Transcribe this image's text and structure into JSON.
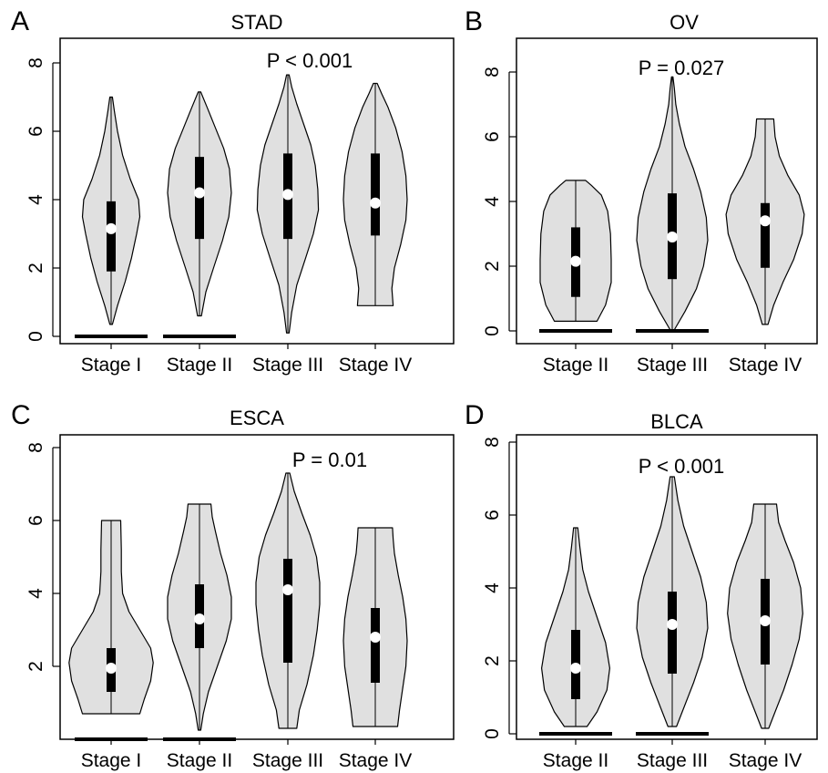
{
  "chart_data": [
    {
      "panel_label": "A",
      "type": "violin",
      "title": "STAD",
      "pvalue": "P < 0.001",
      "categories": [
        "Stage I",
        "Stage II",
        "Stage III",
        "Stage IV"
      ],
      "yticks": [
        "0",
        "2",
        "4",
        "6",
        "8"
      ],
      "ylim": [
        0,
        8
      ],
      "grid": false,
      "fill_color": "#e0e0e0",
      "violins": [
        {
          "min": 0.35,
          "max": 7.0,
          "q1": 1.9,
          "median": 3.15,
          "q3": 3.95,
          "profile": [
            [
              0.35,
              0.02
            ],
            [
              0.9,
              0.1
            ],
            [
              1.6,
              0.22
            ],
            [
              2.3,
              0.32
            ],
            [
              3.0,
              0.4
            ],
            [
              3.5,
              0.45
            ],
            [
              4.0,
              0.43
            ],
            [
              4.6,
              0.3
            ],
            [
              5.3,
              0.18
            ],
            [
              6.0,
              0.1
            ],
            [
              6.6,
              0.05
            ],
            [
              7.0,
              0.02
            ]
          ]
        },
        {
          "min": 0.6,
          "max": 7.15,
          "q1": 2.85,
          "median": 4.2,
          "q3": 5.25,
          "profile": [
            [
              0.6,
              0.03
            ],
            [
              1.3,
              0.1
            ],
            [
              2.0,
              0.22
            ],
            [
              2.8,
              0.36
            ],
            [
              3.5,
              0.46
            ],
            [
              4.2,
              0.5
            ],
            [
              4.9,
              0.47
            ],
            [
              5.5,
              0.38
            ],
            [
              6.1,
              0.25
            ],
            [
              6.7,
              0.12
            ],
            [
              7.15,
              0.02
            ]
          ]
        },
        {
          "min": 0.1,
          "max": 7.65,
          "q1": 2.85,
          "median": 4.15,
          "q3": 5.35,
          "profile": [
            [
              0.1,
              0.02
            ],
            [
              0.7,
              0.06
            ],
            [
              1.5,
              0.14
            ],
            [
              2.3,
              0.28
            ],
            [
              3.0,
              0.4
            ],
            [
              3.7,
              0.48
            ],
            [
              4.3,
              0.47
            ],
            [
              5.0,
              0.43
            ],
            [
              5.6,
              0.36
            ],
            [
              6.2,
              0.25
            ],
            [
              6.8,
              0.14
            ],
            [
              7.3,
              0.06
            ],
            [
              7.65,
              0.02
            ]
          ]
        },
        {
          "min": 0.9,
          "max": 7.4,
          "q1": 2.95,
          "median": 3.9,
          "q3": 5.35,
          "profile": [
            [
              0.9,
              0.28
            ],
            [
              1.4,
              0.26
            ],
            [
              2.0,
              0.3
            ],
            [
              2.7,
              0.4
            ],
            [
              3.4,
              0.48
            ],
            [
              4.0,
              0.5
            ],
            [
              4.7,
              0.48
            ],
            [
              5.4,
              0.42
            ],
            [
              6.1,
              0.32
            ],
            [
              6.7,
              0.2
            ],
            [
              7.1,
              0.1
            ],
            [
              7.4,
              0.03
            ]
          ]
        }
      ],
      "zero_bars": [
        0,
        1
      ]
    },
    {
      "panel_label": "B",
      "type": "violin",
      "title": "OV",
      "pvalue": "P = 0.027",
      "categories": [
        "Stage II",
        "Stage III",
        "Stage IV"
      ],
      "yticks": [
        "0",
        "2",
        "4",
        "6",
        "8"
      ],
      "ylim": [
        0,
        8
      ],
      "grid": false,
      "fill_color": "#e0e0e0",
      "violins": [
        {
          "min": 0.3,
          "max": 4.65,
          "q1": 1.05,
          "median": 2.15,
          "q3": 3.2,
          "profile": [
            [
              0.3,
              0.3
            ],
            [
              0.8,
              0.42
            ],
            [
              1.5,
              0.5
            ],
            [
              2.2,
              0.5
            ],
            [
              3.0,
              0.49
            ],
            [
              3.7,
              0.45
            ],
            [
              4.2,
              0.36
            ],
            [
              4.5,
              0.22
            ],
            [
              4.65,
              0.14
            ]
          ]
        },
        {
          "min": 0.0,
          "max": 7.85,
          "q1": 1.6,
          "median": 2.9,
          "q3": 4.25,
          "profile": [
            [
              0.0,
              0.02
            ],
            [
              0.6,
              0.18
            ],
            [
              1.3,
              0.34
            ],
            [
              2.0,
              0.44
            ],
            [
              2.8,
              0.5
            ],
            [
              3.5,
              0.48
            ],
            [
              4.3,
              0.4
            ],
            [
              5.0,
              0.3
            ],
            [
              5.7,
              0.18
            ],
            [
              6.4,
              0.1
            ],
            [
              7.0,
              0.05
            ],
            [
              7.5,
              0.03
            ],
            [
              7.85,
              0.01
            ]
          ]
        },
        {
          "min": 0.2,
          "max": 6.55,
          "q1": 1.95,
          "median": 3.4,
          "q3": 3.95,
          "profile": [
            [
              0.2,
              0.04
            ],
            [
              0.8,
              0.12
            ],
            [
              1.5,
              0.25
            ],
            [
              2.2,
              0.4
            ],
            [
              3.0,
              0.52
            ],
            [
              3.6,
              0.55
            ],
            [
              4.2,
              0.48
            ],
            [
              4.8,
              0.32
            ],
            [
              5.4,
              0.2
            ],
            [
              6.0,
              0.14
            ],
            [
              6.55,
              0.12
            ]
          ]
        }
      ],
      "zero_bars": [
        0,
        1
      ]
    },
    {
      "panel_label": "C",
      "type": "violin",
      "title": "ESCA",
      "pvalue": "P = 0.01",
      "categories": [
        "Stage I",
        "Stage II",
        "Stage III",
        "Stage IV"
      ],
      "yticks": [
        "2",
        "4",
        "6",
        "8"
      ],
      "ylim": [
        0,
        8
      ],
      "grid": false,
      "fill_color": "#e0e0e0",
      "violins": [
        {
          "min": 0.7,
          "max": 6.0,
          "q1": 1.3,
          "median": 1.95,
          "q3": 2.5,
          "profile": [
            [
              0.7,
              0.45
            ],
            [
              1.1,
              0.52
            ],
            [
              1.6,
              0.62
            ],
            [
              2.1,
              0.66
            ],
            [
              2.5,
              0.62
            ],
            [
              3.0,
              0.45
            ],
            [
              3.5,
              0.28
            ],
            [
              4.0,
              0.18
            ],
            [
              4.6,
              0.16
            ],
            [
              5.2,
              0.16
            ],
            [
              6.0,
              0.15
            ]
          ]
        },
        {
          "min": 0.25,
          "max": 6.45,
          "q1": 2.5,
          "median": 3.3,
          "q3": 4.25,
          "profile": [
            [
              0.25,
              0.02
            ],
            [
              0.7,
              0.06
            ],
            [
              1.3,
              0.14
            ],
            [
              2.0,
              0.28
            ],
            [
              2.7,
              0.42
            ],
            [
              3.3,
              0.5
            ],
            [
              3.9,
              0.5
            ],
            [
              4.5,
              0.43
            ],
            [
              5.1,
              0.33
            ],
            [
              5.7,
              0.25
            ],
            [
              6.1,
              0.2
            ],
            [
              6.45,
              0.18
            ]
          ]
        },
        {
          "min": 0.3,
          "max": 7.3,
          "q1": 2.1,
          "median": 4.1,
          "q3": 4.95,
          "profile": [
            [
              0.3,
              0.14
            ],
            [
              0.8,
              0.18
            ],
            [
              1.5,
              0.3
            ],
            [
              2.3,
              0.4
            ],
            [
              3.0,
              0.46
            ],
            [
              3.7,
              0.5
            ],
            [
              4.3,
              0.5
            ],
            [
              5.0,
              0.45
            ],
            [
              5.6,
              0.35
            ],
            [
              6.2,
              0.22
            ],
            [
              6.8,
              0.1
            ],
            [
              7.3,
              0.03
            ]
          ]
        },
        {
          "min": 0.35,
          "max": 5.8,
          "q1": 1.55,
          "median": 2.8,
          "q3": 3.6,
          "profile": [
            [
              0.35,
              0.35
            ],
            [
              0.8,
              0.38
            ],
            [
              1.4,
              0.43
            ],
            [
              2.0,
              0.48
            ],
            [
              2.7,
              0.5
            ],
            [
              3.3,
              0.48
            ],
            [
              3.9,
              0.43
            ],
            [
              4.5,
              0.36
            ],
            [
              5.1,
              0.3
            ],
            [
              5.5,
              0.28
            ],
            [
              5.8,
              0.27
            ]
          ]
        }
      ],
      "zero_bars": [
        0,
        1
      ]
    },
    {
      "panel_label": "D",
      "type": "violin",
      "title": "BLCA",
      "pvalue": "P < 0.001",
      "categories": [
        "Stage II",
        "Stage III",
        "Stage IV"
      ],
      "yticks": [
        "0",
        "2",
        "4",
        "6",
        "8"
      ],
      "ylim": [
        0,
        8
      ],
      "grid": false,
      "fill_color": "#e0e0e0",
      "violins": [
        {
          "min": 0.2,
          "max": 5.65,
          "q1": 0.95,
          "median": 1.8,
          "q3": 2.85,
          "profile": [
            [
              0.2,
              0.16
            ],
            [
              0.6,
              0.3
            ],
            [
              1.2,
              0.44
            ],
            [
              1.8,
              0.48
            ],
            [
              2.5,
              0.42
            ],
            [
              3.2,
              0.3
            ],
            [
              3.9,
              0.18
            ],
            [
              4.5,
              0.1
            ],
            [
              5.1,
              0.06
            ],
            [
              5.65,
              0.03
            ]
          ]
        },
        {
          "min": 0.2,
          "max": 7.05,
          "q1": 1.65,
          "median": 3.0,
          "q3": 3.9,
          "profile": [
            [
              0.2,
              0.06
            ],
            [
              0.7,
              0.16
            ],
            [
              1.4,
              0.3
            ],
            [
              2.1,
              0.42
            ],
            [
              2.9,
              0.5
            ],
            [
              3.6,
              0.48
            ],
            [
              4.3,
              0.4
            ],
            [
              5.0,
              0.28
            ],
            [
              5.7,
              0.16
            ],
            [
              6.4,
              0.08
            ],
            [
              7.05,
              0.03
            ]
          ]
        },
        {
          "min": 0.15,
          "max": 6.3,
          "q1": 1.9,
          "median": 3.1,
          "q3": 4.25,
          "profile": [
            [
              0.15,
              0.05
            ],
            [
              0.6,
              0.14
            ],
            [
              1.2,
              0.26
            ],
            [
              1.9,
              0.38
            ],
            [
              2.6,
              0.48
            ],
            [
              3.3,
              0.53
            ],
            [
              4.0,
              0.5
            ],
            [
              4.7,
              0.4
            ],
            [
              5.3,
              0.28
            ],
            [
              5.8,
              0.19
            ],
            [
              6.3,
              0.16
            ]
          ]
        }
      ],
      "zero_bars": [
        0,
        1
      ]
    }
  ]
}
